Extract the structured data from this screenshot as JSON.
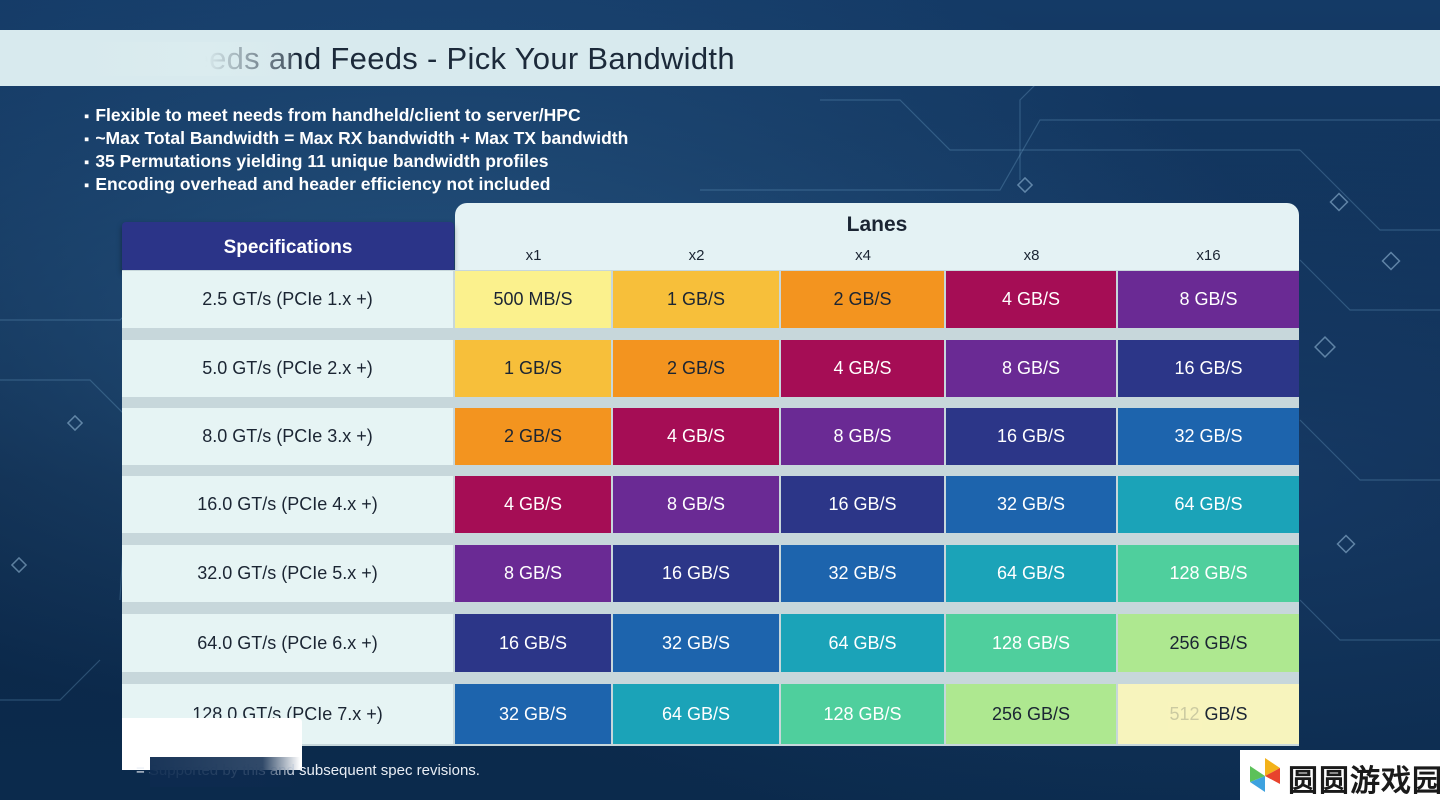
{
  "slide": {
    "title": "PCIe Speeds and Feeds - Pick Your Bandwidth",
    "bullets": [
      "Flexible to meet needs from handheld/client to server/HPC",
      "~Max Total Bandwidth = Max RX bandwidth + Max TX bandwidth",
      "35 Permutations yielding 11 unique bandwidth profiles",
      "Encoding overhead and header efficiency not included"
    ],
    "footnote": "= Supported by this and subsequent spec revisions.",
    "watermark": "圆圆游戏园"
  },
  "table": {
    "spec_header": "Specifications",
    "lanes_title": "Lanes",
    "lanes": [
      "x1",
      "x2",
      "x4",
      "x8",
      "x16"
    ],
    "rows": [
      {
        "spec": "2.5 GT/s (PCIe 1.x +)",
        "values": [
          "500 MB/S",
          "1 GB/S",
          "2 GB/S",
          "4 GB/S",
          "8 GB/S"
        ]
      },
      {
        "spec": "5.0 GT/s (PCIe 2.x +)",
        "values": [
          "1 GB/S",
          "2 GB/S",
          "4 GB/S",
          "8 GB/S",
          "16 GB/S"
        ]
      },
      {
        "spec": "8.0 GT/s (PCIe 3.x +)",
        "values": [
          "2 GB/S",
          "4 GB/S",
          "8 GB/S",
          "16 GB/S",
          "32 GB/S"
        ]
      },
      {
        "spec": "16.0 GT/s (PCIe 4.x +)",
        "values": [
          "4 GB/S",
          "8 GB/S",
          "16 GB/S",
          "32 GB/S",
          "64 GB/S"
        ]
      },
      {
        "spec": "32.0 GT/s (PCIe 5.x +)",
        "values": [
          "8 GB/S",
          "16 GB/S",
          "32 GB/S",
          "64 GB/S",
          "128 GB/S"
        ]
      },
      {
        "spec": "64.0 GT/s (PCIe 6.x +)",
        "values": [
          "16 GB/S",
          "32 GB/S",
          "64 GB/S",
          "128 GB/S",
          "256 GB/S"
        ]
      },
      {
        "spec": "128.0 GT/s (PCIe 7.x +)",
        "values": [
          "32 GB/S",
          "64 GB/S",
          "128 GB/S",
          "256 GB/S",
          "512 GB/S"
        ]
      }
    ]
  },
  "colors": {
    "500 MB/S": {
      "bg": "#fbf18d",
      "fg": "#1b2533"
    },
    "1 GB/S": {
      "bg": "#f7bf3a",
      "fg": "#1b2533"
    },
    "2 GB/S": {
      "bg": "#f3941f",
      "fg": "#1b2533"
    },
    "4 GB/S": {
      "bg": "#a50d55",
      "fg": "#ffffff"
    },
    "8 GB/S": {
      "bg": "#6a2a94",
      "fg": "#ffffff"
    },
    "16 GB/S": {
      "bg": "#2c3688",
      "fg": "#ffffff"
    },
    "32 GB/S": {
      "bg": "#1d64ad",
      "fg": "#ffffff"
    },
    "64 GB/S": {
      "bg": "#1ba3b8",
      "fg": "#ffffff"
    },
    "128 GB/S": {
      "bg": "#4fcf9d",
      "fg": "#ffffff"
    },
    "256 GB/S": {
      "bg": "#aee890",
      "fg": "#1b2533"
    },
    "512 GB/S": {
      "bg": "#f7f4bd",
      "fg": "#1b2533"
    }
  }
}
